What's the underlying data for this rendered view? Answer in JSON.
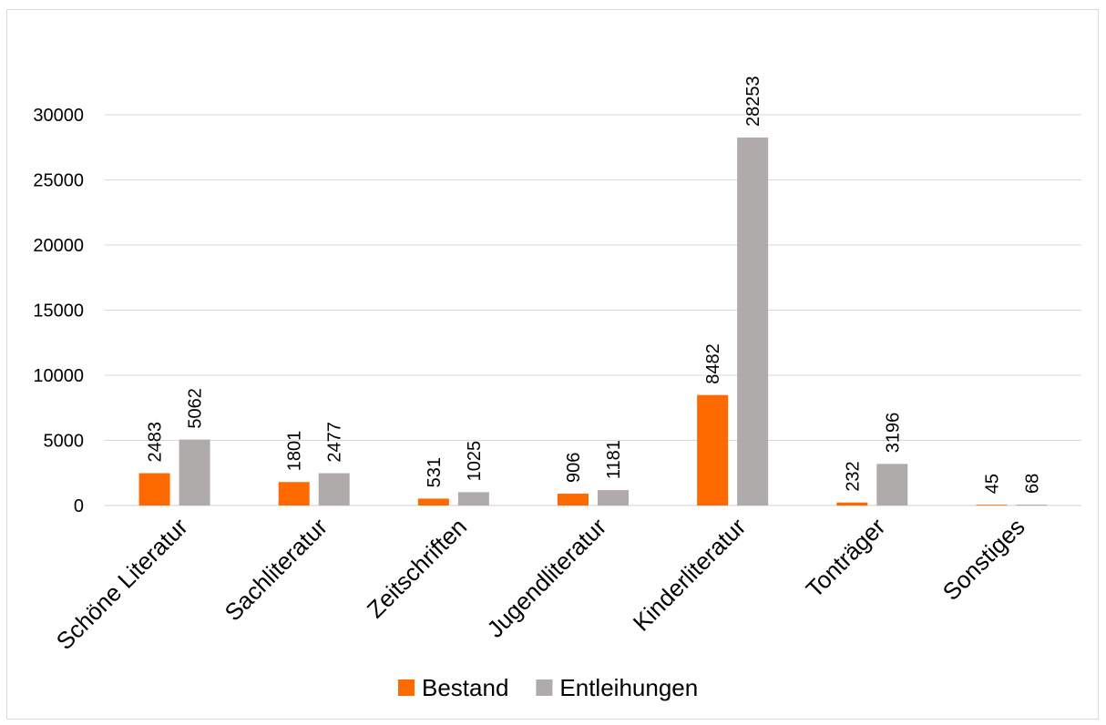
{
  "chart_data": {
    "type": "bar",
    "categories": [
      "Schöne Literatur",
      "Sachliteratur",
      "Zeitschriften",
      "Jugendliteratur",
      "Kinderliteratur",
      "Tonträger",
      "Sonstiges"
    ],
    "series": [
      {
        "name": "Bestand",
        "color": "#FF6A00",
        "values": [
          2483,
          1801,
          531,
          906,
          8482,
          232,
          45
        ]
      },
      {
        "name": "Entleihungen",
        "color": "#AFABAB",
        "values": [
          5062,
          2477,
          1025,
          1181,
          28253,
          3196,
          68
        ]
      }
    ],
    "yticks": [
      0,
      5000,
      10000,
      15000,
      20000,
      25000,
      30000
    ],
    "ylim": [
      0,
      35000
    ],
    "grid": true,
    "legend_position": "bottom",
    "title": "",
    "xlabel": "",
    "ylabel": ""
  }
}
